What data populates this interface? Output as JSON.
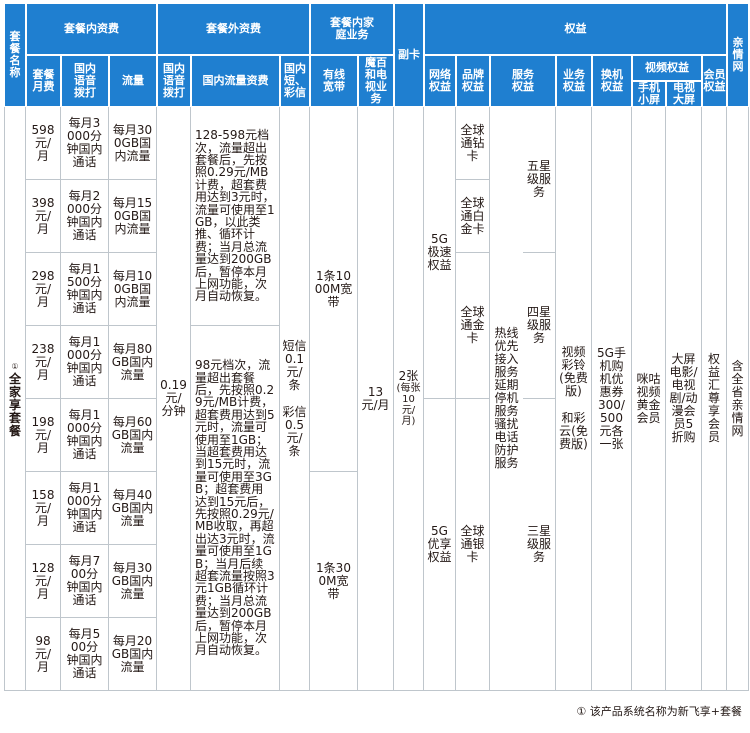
{
  "header": {
    "plan_name": "套餐名称",
    "inner_fee": "套餐内资费",
    "outer_fee": "套餐外资费",
    "family": "套餐内家庭业务",
    "sub_card": "副卡",
    "rights": "权益",
    "family_net": "亲情网",
    "monthly_fee": "套餐月费",
    "domestic_voice": "国内语音拨打",
    "flow": "流量",
    "domestic_voice_out": "国内语音拨打",
    "domestic_flow_fee": "国内流量资费",
    "sms_mms": "国内短、彩信",
    "broadband": "有线宽带",
    "mobaihe": "魔百和电视业务",
    "network_right": "网络权益",
    "brand_right": "品牌权益",
    "service_right": "服务权益",
    "biz_right": "业务权益",
    "switch_right": "换机权益",
    "video_right": "视频权益",
    "mobile_small": "手机小屏",
    "tv_large": "电视大屏",
    "member_right": "会员权益"
  },
  "plan_title": "全家享套餐",
  "plan_title_mark": "①",
  "rows": [
    {
      "fee": "598元/月",
      "voice": "每月3000分钟国内通话",
      "flow": "每月300GB国内流量"
    },
    {
      "fee": "398元/月",
      "voice": "每月2000分钟国内通话",
      "flow": "每月150GB国内流量"
    },
    {
      "fee": "298元/月",
      "voice": "每月1500分钟国内通话",
      "flow": "每月100GB国内流量"
    },
    {
      "fee": "238元/月",
      "voice": "每月1000分钟国内通话",
      "flow": "每月80GB国内流量"
    },
    {
      "fee": "198元/月",
      "voice": "每月1000分钟国内通话",
      "flow": "每月60GB国内流量"
    },
    {
      "fee": "158元/月",
      "voice": "每月1000分钟国内通话",
      "flow": "每月40GB国内流量"
    },
    {
      "fee": "128元/月",
      "voice": "每月700分钟国内通话",
      "flow": "每月30GB国内流量"
    },
    {
      "fee": "98元/月",
      "voice": "每月500分钟国内通话",
      "flow": "每月20GB国内流量"
    }
  ],
  "outer": {
    "voice": "0.19元/分钟",
    "flow_fee_1": "128-598元档次，流量超出套餐后，先按照0.29元/MB计费，超套费用达到3元时，流量可使用至1GB，以此类推、循环计费；当月总流量达到200GB后，暂停本月上网功能，次月自动恢复。",
    "flow_fee_2": "98元档次，流量超出套餐后，先按照0.29元/MB计费，超套费用达到5元时，流量可使用至1GB；当超套费用达到15元时，流量可使用至3GB；超套费用达到15元后，先按照0.29元/MB收取，再超出达3元时，流量可使用至1GB；当月后续超套流量按照3元1GB循环计费；当月总流量达到200GB后，暂停本月上网功能，次月自动恢复。",
    "sms": "短信0.1元/条",
    "mms": "彩信0.5元/条"
  },
  "family": {
    "broadband_1": "1条1000M宽带",
    "broadband_2": "1条300M宽带",
    "mobaihe": "13元/月"
  },
  "sub_card": {
    "main": "2张",
    "note": "(每张10元/月)"
  },
  "rights": {
    "net_5g_fast": "5G极速权益",
    "net_5g_premium": "5G优享权益",
    "brand_diamond": "全球通钻卡",
    "brand_platinum": "全球通白金卡",
    "brand_gold": "全球通金卡",
    "brand_silver": "全球通银卡",
    "service_5star": "五星级服务",
    "service_4star": "四星级服务",
    "service_3star": "三星级服务",
    "service_common": "热线优先接入服务 延期停机服务 骚扰电话防护服务",
    "biz_1": "视频彩铃(免费版)",
    "biz_2": "和彩云(免费版)",
    "switch": "5G手机购机优惠券 300/500元各一张",
    "video_mobile": "咪咕视频黄金会员",
    "video_tv": "大屏电影/电视剧/动漫会员5折购",
    "member": "权益汇尊享会员",
    "family_net": "含全省亲情网"
  },
  "footnote": "① 该产品系统名称为新飞享+套餐",
  "colors": {
    "header_bg": "#1f7fd0",
    "header_text": "#ffffff",
    "border": "#bfc6cc",
    "text": "#231815"
  }
}
